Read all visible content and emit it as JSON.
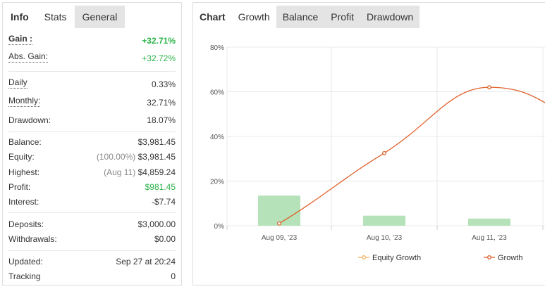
{
  "left": {
    "tabs": [
      {
        "label": "Info"
      },
      {
        "label": "Stats"
      },
      {
        "label": "General"
      }
    ],
    "gain": {
      "label": "Gain :",
      "value": "+32.71%"
    },
    "abs_gain": {
      "label": "Abs. Gain:",
      "value": "+32.72%"
    },
    "daily": {
      "label": "Daily",
      "value": "0.33%"
    },
    "monthly": {
      "label": "Monthly:",
      "value": "32.71%"
    },
    "drawdown": {
      "label": "Drawdown:",
      "value": "18.07%"
    },
    "balance": {
      "label": "Balance:",
      "value": "$3,981.45"
    },
    "equity": {
      "label": "Equity:",
      "note": "(100.00%)",
      "value": "$3,981.45"
    },
    "highest": {
      "label": "Highest:",
      "note": "(Aug 11)",
      "value": "$4,859.24"
    },
    "profit": {
      "label": "Profit:",
      "value": "$981.45"
    },
    "interest": {
      "label": "Interest:",
      "value": "-$7.74"
    },
    "deposits": {
      "label": "Deposits:",
      "value": "$3,000.00"
    },
    "withdrawals": {
      "label": "Withdrawals:",
      "value": "$0.00"
    },
    "updated": {
      "label": "Updated:",
      "value": "Sep 27 at 20:24"
    },
    "tracking": {
      "label": "Tracking",
      "value": "0"
    }
  },
  "right": {
    "tabs": [
      {
        "label": "Chart"
      },
      {
        "label": "Growth"
      },
      {
        "label": "Balance"
      },
      {
        "label": "Profit"
      },
      {
        "label": "Drawdown"
      }
    ]
  },
  "colors": {
    "green": "#2bb34a",
    "line": "#e0602a",
    "bar": "#b6e2b9",
    "equity_line": "#f0b060"
  },
  "chart_data": {
    "type": "line",
    "categories": [
      "Aug 09, '23",
      "Aug 10, '23",
      "Aug 11, '23"
    ],
    "y_ticks": [
      "80%",
      "60%",
      "40%",
      "20%",
      "0%"
    ],
    "ylim": [
      0,
      80
    ],
    "series": [
      {
        "name": "Equity Growth",
        "type": "bar",
        "values": [
          13.5,
          4.5,
          3.2
        ]
      },
      {
        "name": "Growth",
        "type": "line",
        "values": [
          1,
          32.5,
          62
        ]
      }
    ],
    "legend_position": "bottom"
  }
}
